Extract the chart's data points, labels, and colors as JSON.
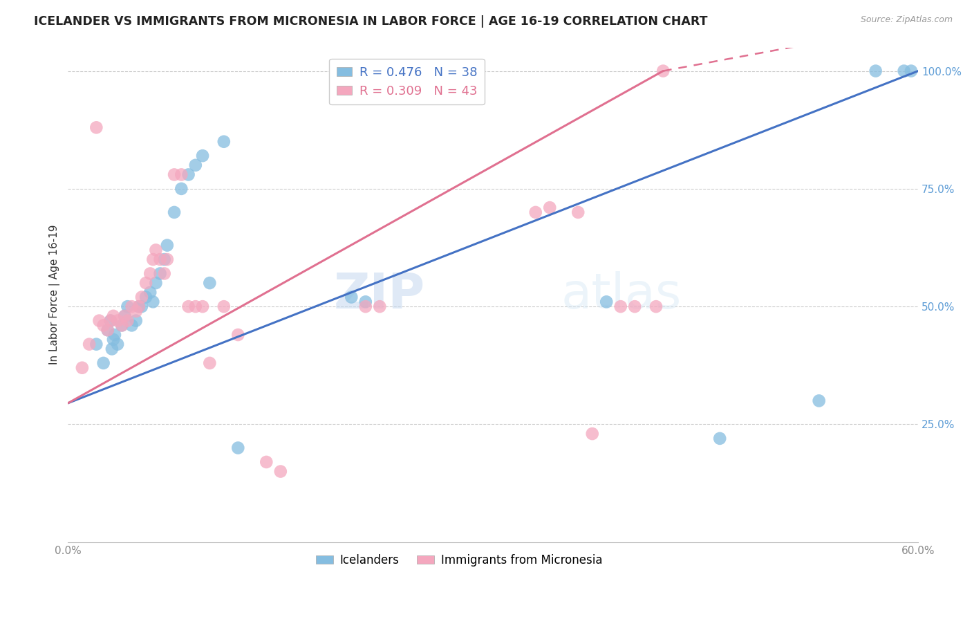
{
  "title": "ICELANDER VS IMMIGRANTS FROM MICRONESIA IN LABOR FORCE | AGE 16-19 CORRELATION CHART",
  "source": "Source: ZipAtlas.com",
  "ylabel_left": "In Labor Force | Age 16-19",
  "xlim": [
    0.0,
    0.6
  ],
  "ylim": [
    0.0,
    1.05
  ],
  "xticklabels_show": [
    "0.0%",
    "60.0%"
  ],
  "yticks_right": [
    0.25,
    0.5,
    0.75,
    1.0
  ],
  "ytick_right_labels": [
    "25.0%",
    "50.0%",
    "75.0%",
    "100.0%"
  ],
  "legend_r1": "R = 0.476",
  "legend_n1": "N = 38",
  "legend_r2": "R = 0.309",
  "legend_n2": "N = 43",
  "blue_color": "#85bde0",
  "pink_color": "#f4a7be",
  "blue_line_color": "#4472c4",
  "pink_line_color": "#e07090",
  "watermark_zip": "ZIP",
  "watermark_atlas": "atlas",
  "icelander_x": [
    0.02,
    0.025,
    0.028,
    0.03,
    0.031,
    0.032,
    0.033,
    0.035,
    0.038,
    0.04,
    0.042,
    0.045,
    0.048,
    0.05,
    0.052,
    0.055,
    0.058,
    0.06,
    0.062,
    0.065,
    0.068,
    0.07,
    0.075,
    0.08,
    0.085,
    0.09,
    0.095,
    0.1,
    0.11,
    0.12,
    0.2,
    0.21,
    0.38,
    0.46,
    0.53,
    0.57,
    0.59,
    0.595
  ],
  "icelander_y": [
    0.42,
    0.38,
    0.45,
    0.47,
    0.41,
    0.43,
    0.44,
    0.42,
    0.46,
    0.48,
    0.5,
    0.46,
    0.47,
    0.5,
    0.5,
    0.52,
    0.53,
    0.51,
    0.55,
    0.57,
    0.6,
    0.63,
    0.7,
    0.75,
    0.78,
    0.8,
    0.82,
    0.55,
    0.85,
    0.2,
    0.52,
    0.51,
    0.51,
    0.22,
    0.3,
    1.0,
    1.0,
    1.0
  ],
  "micronesia_x": [
    0.01,
    0.015,
    0.02,
    0.022,
    0.025,
    0.028,
    0.03,
    0.032,
    0.035,
    0.038,
    0.04,
    0.042,
    0.045,
    0.048,
    0.05,
    0.052,
    0.055,
    0.058,
    0.06,
    0.062,
    0.065,
    0.068,
    0.07,
    0.075,
    0.08,
    0.085,
    0.09,
    0.095,
    0.1,
    0.11,
    0.12,
    0.14,
    0.15,
    0.21,
    0.22,
    0.33,
    0.34,
    0.36,
    0.37,
    0.39,
    0.4,
    0.415,
    0.42
  ],
  "micronesia_y": [
    0.37,
    0.42,
    0.88,
    0.47,
    0.46,
    0.45,
    0.47,
    0.48,
    0.47,
    0.46,
    0.48,
    0.47,
    0.5,
    0.49,
    0.5,
    0.52,
    0.55,
    0.57,
    0.6,
    0.62,
    0.6,
    0.57,
    0.6,
    0.78,
    0.78,
    0.5,
    0.5,
    0.5,
    0.38,
    0.5,
    0.44,
    0.17,
    0.15,
    0.5,
    0.5,
    0.7,
    0.71,
    0.7,
    0.23,
    0.5,
    0.5,
    0.5,
    1.0
  ]
}
